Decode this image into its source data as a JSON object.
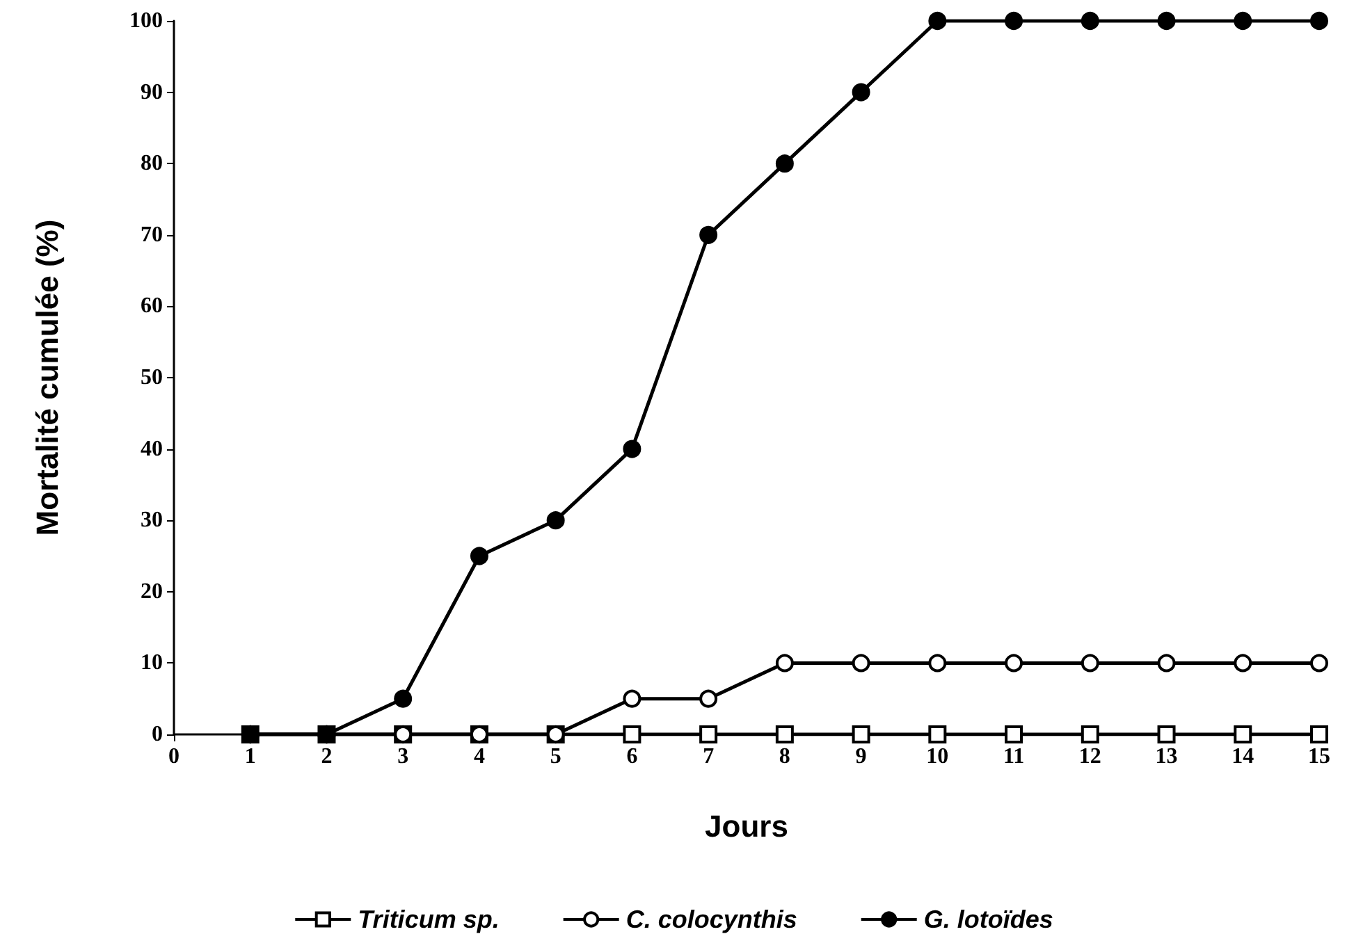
{
  "chart_data": {
    "type": "line",
    "xlabel": "Jours",
    "ylabel": "Mortalité cumulée (%)",
    "x": [
      1,
      2,
      3,
      4,
      5,
      6,
      7,
      8,
      9,
      10,
      11,
      12,
      13,
      14,
      15
    ],
    "xlim": [
      0,
      15
    ],
    "xticks": [
      0,
      1,
      2,
      3,
      4,
      5,
      6,
      7,
      8,
      9,
      10,
      11,
      12,
      13,
      14,
      15
    ],
    "ylim": [
      0,
      100
    ],
    "yticks": [
      0,
      10,
      20,
      30,
      40,
      50,
      60,
      70,
      80,
      90,
      100
    ],
    "grid": false,
    "legend": "bottom",
    "line_style": "solid",
    "series": [
      {
        "name": "Triticum sp.",
        "color": "#000000",
        "marker": "square",
        "values": [
          0,
          0,
          0,
          0,
          0,
          0,
          0,
          0,
          0,
          0,
          0,
          0,
          0,
          0,
          0
        ]
      },
      {
        "name": "C. colocynthis",
        "color": "#000000",
        "marker": "circle",
        "values": [
          0,
          0,
          0,
          0,
          0,
          5,
          5,
          10,
          10,
          10,
          10,
          10,
          10,
          10,
          10
        ]
      },
      {
        "name": "G. lotoïdes",
        "color": "#000000",
        "marker": "circle",
        "values": [
          0,
          0,
          5,
          25,
          30,
          40,
          70,
          80,
          90,
          100,
          100,
          100,
          100,
          100,
          100
        ]
      }
    ]
  }
}
